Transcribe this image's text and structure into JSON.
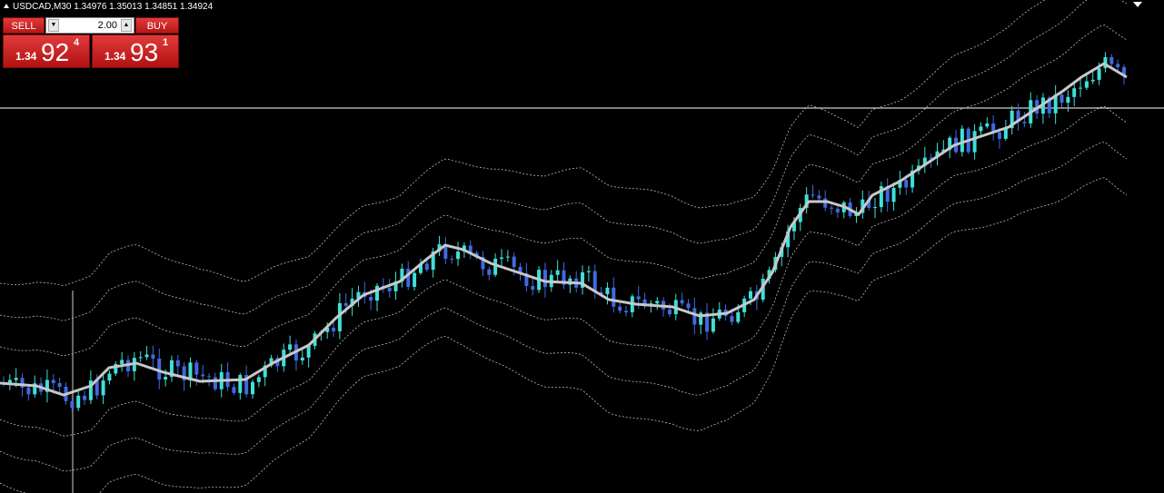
{
  "symbol_bar": {
    "text": "USDCAD,M30 1.34976 1.35013 1.34851 1.34924"
  },
  "trade_panel": {
    "sell_label": "SELL",
    "lot_size": "2.00",
    "buy_label": "BUY",
    "sell_price": {
      "prefix": "1.34",
      "big": "92",
      "small": "4"
    },
    "buy_price": {
      "prefix": "1.34",
      "big": "93",
      "small": "1"
    }
  }
}
